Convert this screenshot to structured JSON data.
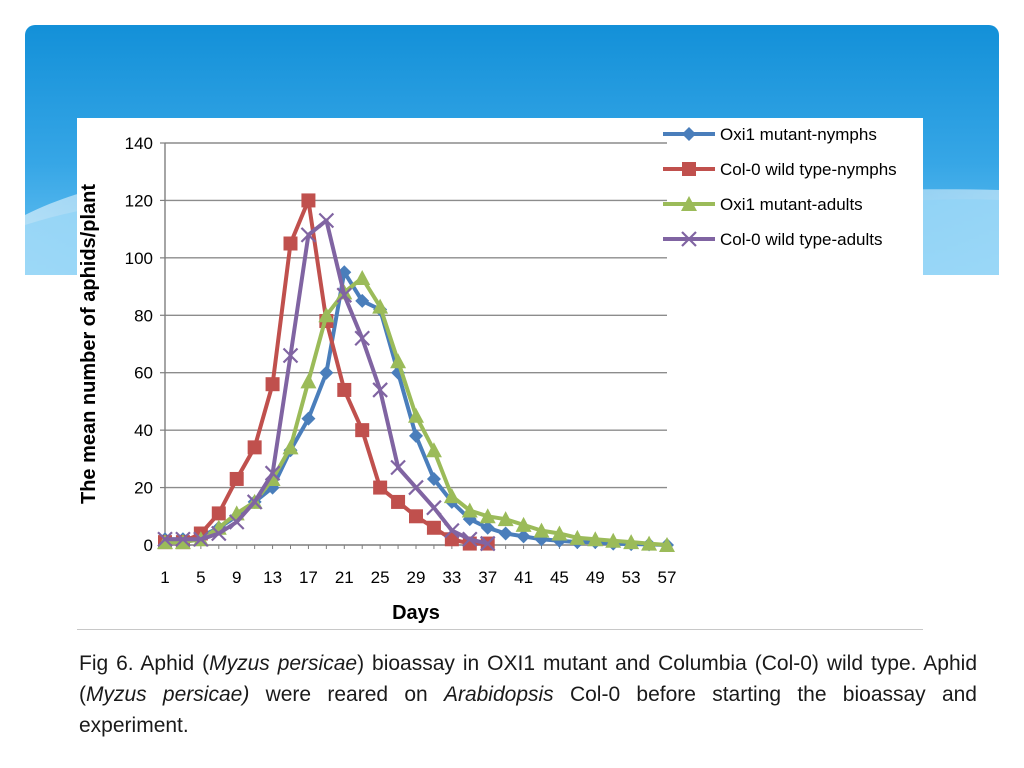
{
  "colors": {
    "banner_top": "#1592d9",
    "banner_bottom": "#7ecdf6",
    "grid": "#8c8c8c",
    "axis": "#7f7f7f"
  },
  "chart_data": {
    "type": "line",
    "title": "",
    "xlabel": "Days",
    "ylabel": "The mean number of aphids/plant",
    "ylim": [
      0,
      140
    ],
    "yticks": [
      0,
      20,
      40,
      60,
      80,
      100,
      120,
      140
    ],
    "xticks": [
      1,
      5,
      9,
      13,
      17,
      21,
      25,
      29,
      33,
      37,
      41,
      45,
      49,
      53,
      57
    ],
    "grid": "horizontal",
    "legend_position": "top-right",
    "series": [
      {
        "name": "Oxi1 mutant-nymphs",
        "color": "#4a7ebb",
        "marker": "diamond",
        "x": [
          1,
          3,
          5,
          7,
          9,
          11,
          13,
          15,
          17,
          19,
          21,
          23,
          25,
          27,
          29,
          31,
          33,
          35,
          37,
          39,
          41,
          43,
          45,
          47,
          49,
          51,
          53,
          55,
          57
        ],
        "y": [
          2,
          2,
          3,
          6,
          10,
          15,
          20,
          33,
          44,
          60,
          95,
          85,
          82,
          60,
          38,
          23,
          15,
          9,
          6,
          4,
          3,
          2,
          1.5,
          1,
          1,
          0.5,
          0.3,
          0.2,
          0
        ]
      },
      {
        "name": "Col-0 wild type-nymphs",
        "color": "#c0504d",
        "marker": "square",
        "x": [
          1,
          3,
          5,
          7,
          9,
          11,
          13,
          15,
          17,
          19,
          21,
          23,
          25,
          27,
          29,
          31,
          33,
          35,
          37
        ],
        "y": [
          1,
          1,
          4,
          11,
          23,
          34,
          56,
          105,
          120,
          78,
          54,
          40,
          20,
          15,
          10,
          6,
          2,
          0.5,
          0.5
        ]
      },
      {
        "name": "Oxi1 mutant-adults",
        "color": "#9bbb59",
        "marker": "triangle",
        "x": [
          1,
          3,
          5,
          7,
          9,
          11,
          13,
          15,
          17,
          19,
          21,
          23,
          25,
          27,
          29,
          31,
          33,
          35,
          37,
          39,
          41,
          43,
          45,
          47,
          49,
          51,
          53,
          55,
          57
        ],
        "y": [
          1,
          1,
          2,
          6,
          11,
          15,
          23,
          34,
          57,
          80,
          88,
          93,
          83,
          64,
          45,
          33,
          17,
          12,
          10,
          9,
          7,
          5,
          4,
          2.5,
          2,
          1.5,
          1,
          0.5,
          0
        ]
      },
      {
        "name": "Col-0 wild type-adults",
        "color": "#8064a2",
        "marker": "x",
        "x": [
          1,
          3,
          5,
          7,
          9,
          11,
          13,
          15,
          17,
          19,
          21,
          23,
          25,
          27,
          29,
          31,
          33,
          35,
          37
        ],
        "y": [
          2,
          2,
          2,
          4,
          8,
          15,
          25,
          66,
          108,
          113,
          87,
          72,
          54,
          27,
          20,
          13,
          5,
          2,
          0.5
        ]
      }
    ]
  },
  "caption": {
    "fig_label": "Fig 6. Aphid (",
    "species_1": "Myzus persicae",
    "part_2": ") bioassay in OXI1 mutant and Columbia (Col-0) wild type. Aphid (",
    "species_2": "Myzus persicae)",
    "part_3": " were reared on ",
    "genus": "Arabidopsis",
    "part_4": " Col-0 before starting the bioassay and experiment."
  }
}
